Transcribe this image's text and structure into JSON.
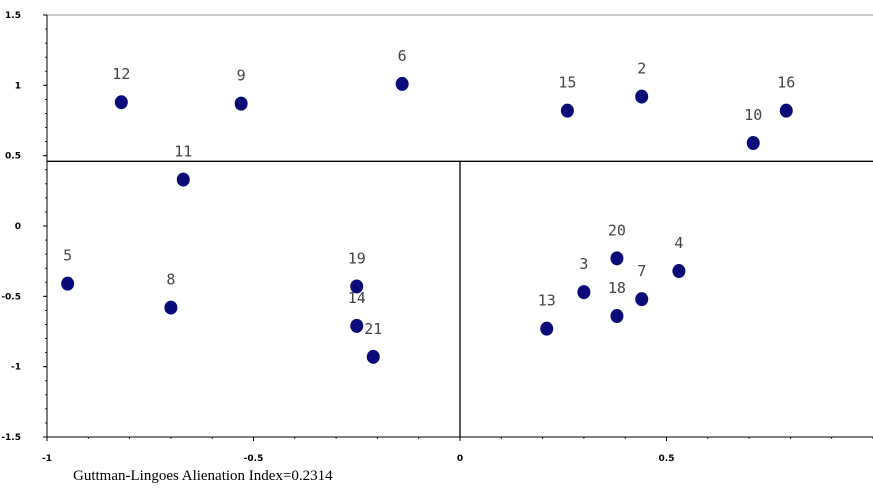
{
  "chart_data": {
    "type": "scatter",
    "title": "",
    "xlabel": "",
    "ylabel": "",
    "xlim": [
      -1,
      1
    ],
    "ylim": [
      -1.5,
      1.5
    ],
    "x_ticks": [
      -1,
      -0.5,
      0,
      0.5
    ],
    "y_ticks": [
      -1.5,
      -1,
      -0.5,
      0,
      0.5,
      1,
      1.5
    ],
    "x_tick_labels": [
      "-1",
      "-0.5",
      "0",
      "0.5"
    ],
    "y_tick_labels": [
      "-1.5",
      "-1",
      "-0.5",
      "0",
      "0.5",
      "1",
      "1.5"
    ],
    "divider_lines": {
      "horizontal_y": 0.46,
      "vertical_x": 0
    },
    "marker_color": "#0a0a78",
    "points": [
      {
        "label": "2",
        "x": 0.44,
        "y": 0.92
      },
      {
        "label": "3",
        "x": 0.3,
        "y": -0.47
      },
      {
        "label": "4",
        "x": 0.53,
        "y": -0.32
      },
      {
        "label": "5",
        "x": -0.95,
        "y": -0.41
      },
      {
        "label": "6",
        "x": -0.14,
        "y": 1.01
      },
      {
        "label": "7",
        "x": 0.44,
        "y": -0.52
      },
      {
        "label": "8",
        "x": -0.7,
        "y": -0.58
      },
      {
        "label": "9",
        "x": -0.53,
        "y": 0.87
      },
      {
        "label": "10",
        "x": 0.71,
        "y": 0.59
      },
      {
        "label": "11",
        "x": -0.67,
        "y": 0.33
      },
      {
        "label": "12",
        "x": -0.82,
        "y": 0.88
      },
      {
        "label": "13",
        "x": 0.21,
        "y": -0.73
      },
      {
        "label": "14",
        "x": -0.25,
        "y": -0.71
      },
      {
        "label": "15",
        "x": 0.26,
        "y": 0.82
      },
      {
        "label": "16",
        "x": 0.79,
        "y": 0.82
      },
      {
        "label": "18",
        "x": 0.38,
        "y": -0.64
      },
      {
        "label": "19",
        "x": -0.25,
        "y": -0.43
      },
      {
        "label": "20",
        "x": 0.38,
        "y": -0.23
      },
      {
        "label": "21",
        "x": -0.21,
        "y": -0.93
      }
    ]
  },
  "footnote": "Guttman-Lingoes Alienation Index=0.2314"
}
